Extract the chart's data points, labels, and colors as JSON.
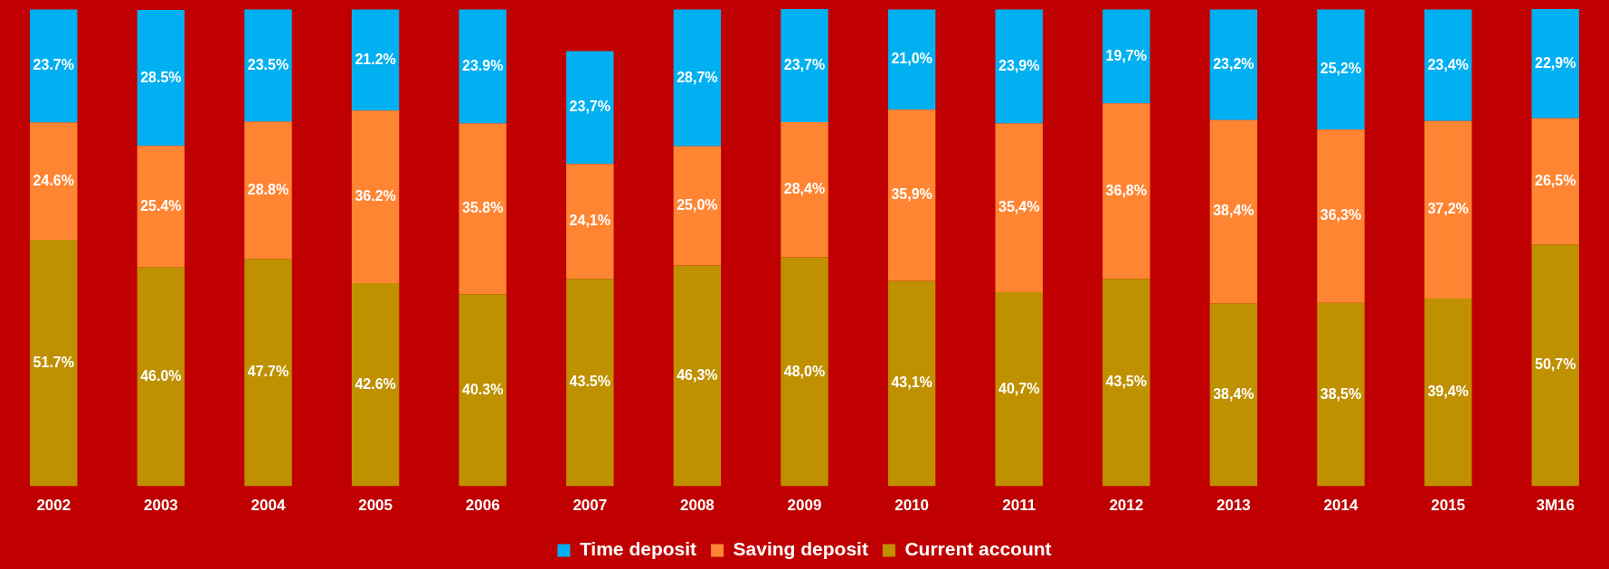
{
  "chart_data": {
    "type": "bar",
    "stacked": true,
    "legend": "bottom",
    "grid": false,
    "tick_labels": "x",
    "categories": [
      "2002",
      "2003",
      "2004",
      "2005",
      "2006",
      "2007",
      "2008",
      "2009",
      "2010",
      "2011",
      "2012",
      "2013",
      "2014",
      "2015",
      "3M16"
    ],
    "series": [
      {
        "name": "Current account",
        "color": "#bf9000",
        "values": [
          51.7,
          46.0,
          47.7,
          42.6,
          40.3,
          43.5,
          46.3,
          48.0,
          43.1,
          40.7,
          43.5,
          38.4,
          38.5,
          39.4,
          50.7
        ],
        "value_labels": [
          "51.7%",
          "46.0%",
          "47.7%",
          "42.6%",
          "40.3%",
          "43.5%",
          "46,3%",
          "48,0%",
          "43,1%",
          "40,7%",
          "43,5%",
          "38,4%",
          "38,5%",
          "39,4%",
          "50,7%"
        ]
      },
      {
        "name": "Saving deposit",
        "color": "#ff8533",
        "values": [
          24.6,
          25.4,
          28.8,
          36.2,
          35.8,
          24.1,
          25.0,
          28.4,
          35.9,
          35.4,
          36.8,
          38.4,
          36.3,
          37.2,
          26.5
        ],
        "value_labels": [
          "24.6%",
          "25.4%",
          "28.8%",
          "36.2%",
          "35.8%",
          "24,1%",
          "25,0%",
          "28,4%",
          "35,9%",
          "35,4%",
          "36,8%",
          "38,4%",
          "36,3%",
          "37,2%",
          "26,5%"
        ]
      },
      {
        "name": "Time deposit",
        "color": "#00b0f0",
        "values": [
          23.7,
          28.5,
          23.5,
          21.2,
          23.9,
          23.7,
          28.7,
          23.7,
          21.0,
          23.9,
          19.7,
          23.2,
          25.2,
          23.4,
          22.9
        ],
        "value_labels": [
          "23.7%",
          "28.5%",
          "23.5%",
          "21.2%",
          "23.9%",
          "23,7%",
          "28,7%",
          "23,7%",
          "21,0%",
          "23,9%",
          "19,7%",
          "23,2%",
          "25,2%",
          "23,4%",
          "22,9%"
        ]
      }
    ]
  }
}
